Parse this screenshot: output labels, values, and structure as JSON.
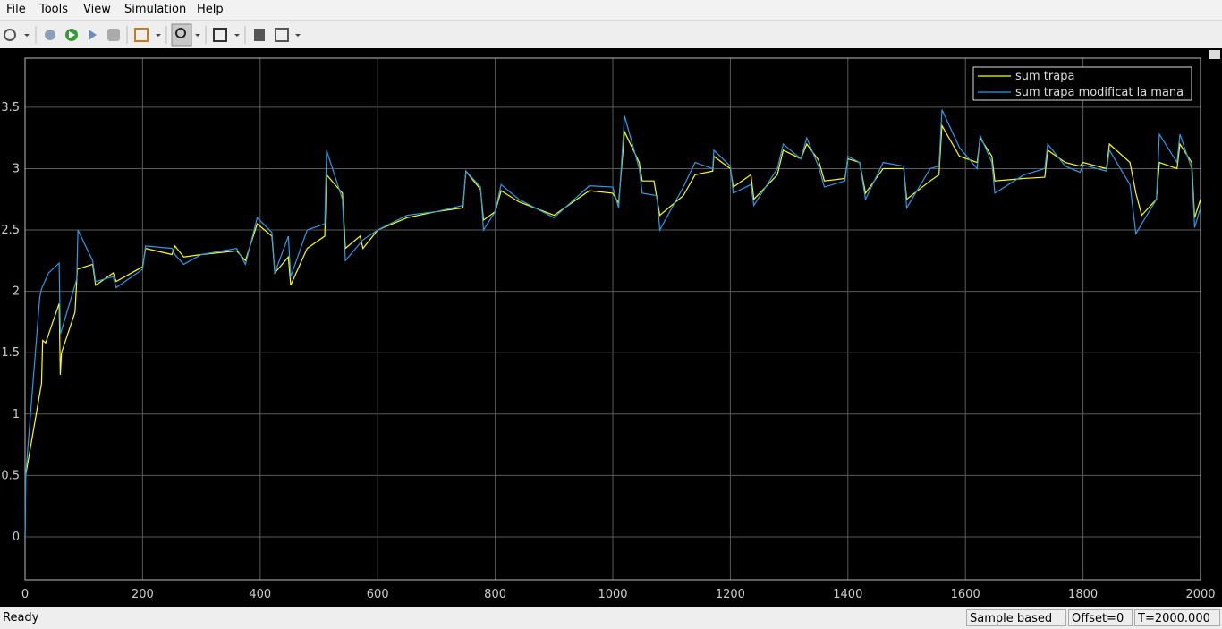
{
  "menu": [
    "File",
    "Tools",
    "View",
    "Simulation",
    "Help"
  ],
  "status": {
    "left": "Ready",
    "mode": "Sample based",
    "offset": "Offset=0",
    "time": "T=2000.000"
  },
  "chart_data": {
    "type": "line",
    "xlim": [
      0,
      2000
    ],
    "xticks": [
      0,
      200,
      400,
      600,
      800,
      1000,
      1200,
      1400,
      1600,
      1800,
      2000
    ],
    "ylim": [
      -0.35,
      3.9
    ],
    "yticks": [
      0,
      0.5,
      1,
      1.5,
      2,
      2.5,
      3,
      3.5
    ],
    "grid": true,
    "legend": "upper right",
    "series": [
      {
        "name": "sum trapa",
        "color": "#ffff00",
        "x": [
          0,
          1,
          28,
          30,
          35,
          58,
          60,
          62,
          85,
          89,
          115,
          120,
          150,
          155,
          200,
          205,
          250,
          255,
          270,
          300,
          360,
          375,
          395,
          420,
          425,
          448,
          452,
          480,
          510,
          513,
          540,
          545,
          570,
          575,
          600,
          650,
          700,
          745,
          750,
          775,
          780,
          800,
          810,
          840,
          900,
          960,
          1000,
          1010,
          1020,
          1045,
          1050,
          1070,
          1080,
          1120,
          1140,
          1170,
          1172,
          1200,
          1205,
          1235,
          1240,
          1280,
          1290,
          1320,
          1330,
          1350,
          1360,
          1395,
          1400,
          1420,
          1430,
          1460,
          1495,
          1500,
          1540,
          1555,
          1560,
          1590,
          1620,
          1625,
          1645,
          1650,
          1700,
          1735,
          1740,
          1770,
          1795,
          1800,
          1840,
          1845,
          1880,
          1890,
          1900,
          1925,
          1930,
          1960,
          1965,
          1985,
          1990,
          2000
        ],
        "values": [
          0,
          0.5,
          1.25,
          1.6,
          1.58,
          1.9,
          1.32,
          1.5,
          1.83,
          2.18,
          2.22,
          2.05,
          2.15,
          2.08,
          2.2,
          2.35,
          2.3,
          2.37,
          2.28,
          2.3,
          2.33,
          2.25,
          2.55,
          2.45,
          2.15,
          2.28,
          2.05,
          2.35,
          2.45,
          2.95,
          2.8,
          2.35,
          2.45,
          2.35,
          2.5,
          2.6,
          2.65,
          2.68,
          2.98,
          2.83,
          2.58,
          2.65,
          2.82,
          2.73,
          2.62,
          2.82,
          2.8,
          2.72,
          3.3,
          3.05,
          2.9,
          2.9,
          2.62,
          2.78,
          2.95,
          2.98,
          3.1,
          3.0,
          2.85,
          2.95,
          2.75,
          2.95,
          3.15,
          3.08,
          3.2,
          3.07,
          2.9,
          2.92,
          3.08,
          3.05,
          2.8,
          3.0,
          3.0,
          2.75,
          2.9,
          2.95,
          3.35,
          3.1,
          3.05,
          3.25,
          3.1,
          2.9,
          2.92,
          2.93,
          3.15,
          3.05,
          3.02,
          3.05,
          3.0,
          3.2,
          3.05,
          2.8,
          2.62,
          2.75,
          3.05,
          3.0,
          3.2,
          3.05,
          2.6,
          2.75
        ]
      },
      {
        "name": "sum trapa modificat la mana",
        "color": "#2b9bea",
        "x": [
          0,
          1,
          25,
          28,
          40,
          58,
          60,
          88,
          90,
          115,
          120,
          150,
          155,
          200,
          205,
          250,
          255,
          270,
          300,
          360,
          375,
          395,
          420,
          425,
          448,
          452,
          480,
          510,
          513,
          540,
          545,
          575,
          600,
          650,
          700,
          745,
          750,
          775,
          780,
          800,
          810,
          840,
          900,
          960,
          1000,
          1010,
          1020,
          1045,
          1050,
          1075,
          1080,
          1120,
          1140,
          1170,
          1172,
          1200,
          1205,
          1235,
          1240,
          1280,
          1290,
          1320,
          1330,
          1350,
          1360,
          1395,
          1400,
          1420,
          1430,
          1460,
          1495,
          1500,
          1540,
          1555,
          1560,
          1590,
          1620,
          1625,
          1645,
          1650,
          1700,
          1735,
          1740,
          1770,
          1795,
          1800,
          1840,
          1845,
          1880,
          1890,
          1925,
          1930,
          1960,
          1965,
          1985,
          1990,
          2000
        ],
        "values": [
          0,
          0.5,
          1.95,
          2.02,
          2.15,
          2.23,
          1.65,
          2.1,
          2.5,
          2.25,
          2.08,
          2.12,
          2.03,
          2.18,
          2.37,
          2.35,
          2.3,
          2.22,
          2.3,
          2.35,
          2.22,
          2.6,
          2.48,
          2.15,
          2.45,
          2.12,
          2.5,
          2.55,
          3.15,
          2.75,
          2.25,
          2.42,
          2.5,
          2.62,
          2.65,
          2.7,
          2.98,
          2.85,
          2.5,
          2.65,
          2.87,
          2.75,
          2.6,
          2.86,
          2.85,
          2.68,
          3.43,
          3.0,
          2.8,
          2.78,
          2.5,
          2.85,
          3.05,
          3.0,
          3.15,
          3.02,
          2.8,
          2.87,
          2.7,
          3.0,
          3.2,
          3.08,
          3.25,
          3.02,
          2.85,
          2.9,
          3.1,
          3.05,
          2.75,
          3.05,
          3.02,
          2.68,
          3.0,
          3.02,
          3.48,
          3.17,
          3.0,
          3.27,
          3.05,
          2.8,
          2.95,
          3.0,
          3.2,
          3.02,
          2.97,
          3.03,
          2.98,
          3.15,
          2.87,
          2.47,
          2.75,
          3.28,
          3.05,
          3.28,
          3.0,
          2.52,
          2.68
        ]
      }
    ]
  }
}
